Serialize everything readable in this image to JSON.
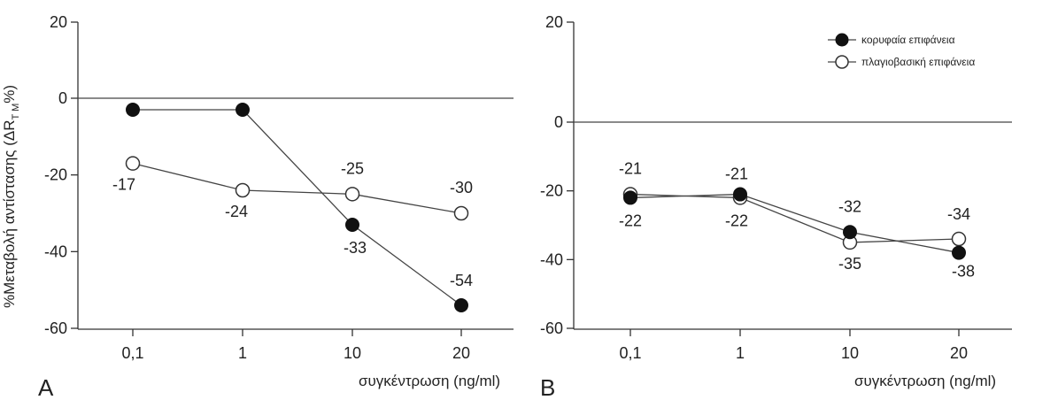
{
  "y_axis_title": "%Μεταβολή αντίστασης (ΔR",
  "y_axis_title_sub": "T M",
  "y_axis_title_end": "%)",
  "chart_data": [
    {
      "type": "line",
      "panel_label": "A",
      "categories": [
        "0,1",
        "1",
        "10",
        "20"
      ],
      "xlabel": "συγκέντρωση (ng/ml)",
      "ylim": [
        -60,
        20
      ],
      "yticks": [
        -60,
        -40,
        -20,
        0,
        20
      ],
      "reference_line": 0,
      "series": [
        {
          "marker": "filled",
          "values": [
            -3,
            -3,
            -33,
            -54
          ],
          "labels": [
            "",
            "",
            "-33",
            "-54"
          ]
        },
        {
          "marker": "open",
          "values": [
            -17,
            -24,
            -25,
            -30
          ],
          "labels": [
            "-17",
            "-24",
            "-25",
            "-30"
          ]
        }
      ]
    },
    {
      "type": "line",
      "panel_label": "B",
      "categories": [
        "0,1",
        "1",
        "10",
        "20"
      ],
      "xlabel": "συγκέντρωση (ng/ml)",
      "ylim": [
        -60,
        20
      ],
      "yticks": [
        -60,
        -40,
        -20,
        0,
        20
      ],
      "reference_line": 0,
      "legend_position": "top-right",
      "series": [
        {
          "name": "κορυφαία επιφάνεια",
          "marker": "filled",
          "values": [
            -22,
            -21,
            -32,
            -38
          ],
          "labels": [
            "-22",
            "-21",
            "-32",
            "-38"
          ]
        },
        {
          "name": "πλαγιοβασική επιφάνεια",
          "marker": "open",
          "values": [
            -21,
            -22,
            -35,
            -34
          ],
          "labels": [
            "-21",
            "-22",
            "-35",
            "-34"
          ]
        }
      ]
    }
  ]
}
